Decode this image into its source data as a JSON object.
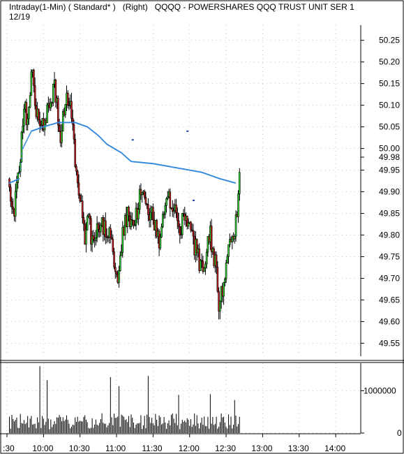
{
  "header": {
    "title": "Intraday(1-Min) ( Standard* )   (Right)   QQQQ - POWERSHARES QQQ TRUST UNIT SER 1",
    "date": "12/19"
  },
  "chart_data": {
    "type": "candlestick",
    "symbol": "QQQQ",
    "title": "Intraday(1-Min) ( Standard* )   (Right)   QQQQ - POWERSHARES QQQ TRUST UNIT SER 1",
    "subtitle": "12/19",
    "price_axis": {
      "side": "right",
      "ticks": [
        "50.25",
        "50.20",
        "50.15",
        "50.10",
        "50.05",
        "50.00",
        "49.95",
        "49.90",
        "49.85",
        "49.80",
        "49.75",
        "49.70",
        "49.65",
        "49.60",
        "49.55"
      ],
      "last_price_label": "49.98",
      "ylim": [
        49.52,
        50.285
      ]
    },
    "volume_axis": {
      "side": "right",
      "ticks": [
        "1000000",
        "0"
      ],
      "ylim": [
        0,
        1650000
      ]
    },
    "time_axis": {
      "ticks": [
        ":30",
        "10:00",
        "10:30",
        "11:00",
        "11:30",
        "12:00",
        "12:30",
        "13:00",
        "13:30",
        "14:00"
      ],
      "xlim_minutes": [
        570,
        860
      ]
    },
    "path": [
      [
        572,
        49.93
      ],
      [
        575,
        49.84
      ],
      [
        580,
        49.95
      ],
      [
        584,
        50.11
      ],
      [
        587,
        50.06
      ],
      [
        591,
        50.2
      ],
      [
        594,
        50.08
      ],
      [
        599,
        50.05
      ],
      [
        604,
        50.1
      ],
      [
        609,
        50.14
      ],
      [
        614,
        50.03
      ],
      [
        619,
        50.12
      ],
      [
        623,
        50.08
      ],
      [
        626,
        49.98
      ],
      [
        629,
        49.9
      ],
      [
        632,
        49.86
      ],
      [
        634,
        49.77
      ],
      [
        637,
        49.86
      ],
      [
        639,
        49.78
      ],
      [
        642,
        49.8
      ],
      [
        645,
        49.83
      ],
      [
        650,
        49.82
      ],
      [
        655,
        49.8
      ],
      [
        659,
        49.72
      ],
      [
        662,
        49.7
      ],
      [
        665,
        49.8
      ],
      [
        669,
        49.85
      ],
      [
        674,
        49.82
      ],
      [
        678,
        49.87
      ],
      [
        681,
        49.92
      ],
      [
        684,
        49.88
      ],
      [
        686,
        49.84
      ],
      [
        689,
        49.85
      ],
      [
        692,
        49.82
      ],
      [
        696,
        49.78
      ],
      [
        699,
        49.85
      ],
      [
        702,
        49.9
      ],
      [
        705,
        49.87
      ],
      [
        709,
        49.84
      ],
      [
        712,
        49.8
      ],
      [
        715,
        49.85
      ],
      [
        718,
        49.83
      ],
      [
        722,
        49.79
      ],
      [
        726,
        49.76
      ],
      [
        730,
        49.72
      ],
      [
        733,
        49.75
      ],
      [
        737,
        49.8
      ],
      [
        740,
        49.75
      ],
      [
        742,
        49.72
      ],
      [
        744,
        49.63
      ],
      [
        746,
        49.66
      ],
      [
        749,
        49.72
      ],
      [
        753,
        49.77
      ],
      [
        756,
        49.8
      ],
      [
        759,
        49.85
      ],
      [
        761,
        49.95
      ]
    ],
    "vwap": {
      "color": "#3388dd",
      "points": [
        [
          572,
          49.92
        ],
        [
          580,
          49.93
        ],
        [
          583,
          50.0
        ],
        [
          590,
          50.04
        ],
        [
          600,
          50.05
        ],
        [
          612,
          50.06
        ],
        [
          626,
          50.06
        ],
        [
          636,
          50.05
        ],
        [
          645,
          50.03
        ],
        [
          652,
          50.01
        ],
        [
          658,
          50.0
        ],
        [
          664,
          49.99
        ],
        [
          672,
          49.97
        ],
        [
          690,
          49.965
        ],
        [
          710,
          49.955
        ],
        [
          730,
          49.945
        ],
        [
          745,
          49.93
        ],
        [
          758,
          49.92
        ]
      ]
    },
    "stray_marks": [
      [
        673,
        50.02
      ],
      [
        718,
        50.04
      ],
      [
        723,
        49.88
      ]
    ],
    "volume_spikes": [
      [
        597,
        1580000
      ],
      [
        603,
        1250000
      ],
      [
        655,
        1320000
      ],
      [
        662,
        1110000
      ],
      [
        686,
        1350000
      ],
      [
        711,
        900000
      ],
      [
        737,
        920000
      ],
      [
        757,
        780000
      ]
    ],
    "up_color": "#33dd33",
    "down_color": "#cc2222",
    "grid": true
  }
}
